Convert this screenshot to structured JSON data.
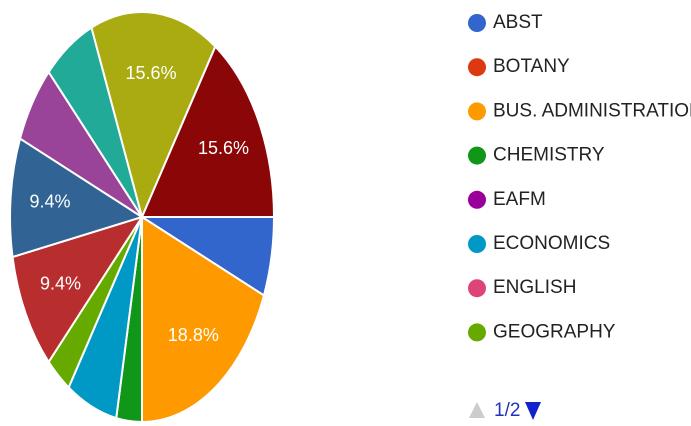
{
  "chart_data": {
    "type": "pie",
    "categories": [
      "ABST",
      "BOTANY",
      "BUS. ADMINISTRATION",
      "CHEMISTRY",
      "EAFM",
      "ECONOMICS",
      "ENGLISH",
      "GEOGRAPHY",
      null,
      null,
      null,
      null,
      null,
      null,
      null,
      null
    ],
    "values": [
      6.25,
      0,
      18.75,
      3.125,
      0,
      6.25,
      0,
      3.125,
      9.375,
      9.375,
      6.25,
      6.25,
      15.625,
      0,
      0,
      15.625
    ],
    "value_labels": [
      null,
      null,
      "18.8%",
      null,
      null,
      null,
      null,
      null,
      "9.4%",
      "9.4%",
      null,
      null,
      "15.6%",
      null,
      null,
      "15.6%"
    ],
    "colors": [
      "#3366cc",
      "#dc3912",
      "#ff9900",
      "#109618",
      "#990099",
      "#0099c6",
      "#dd4477",
      "#66aa00",
      "#b82e2e",
      "#316395",
      "#994499",
      "#22aa99",
      "#aaaa11",
      "#6633cc",
      "#e67300",
      "#8b0707"
    ],
    "legend_position": "right",
    "legend_page": "1/2"
  }
}
